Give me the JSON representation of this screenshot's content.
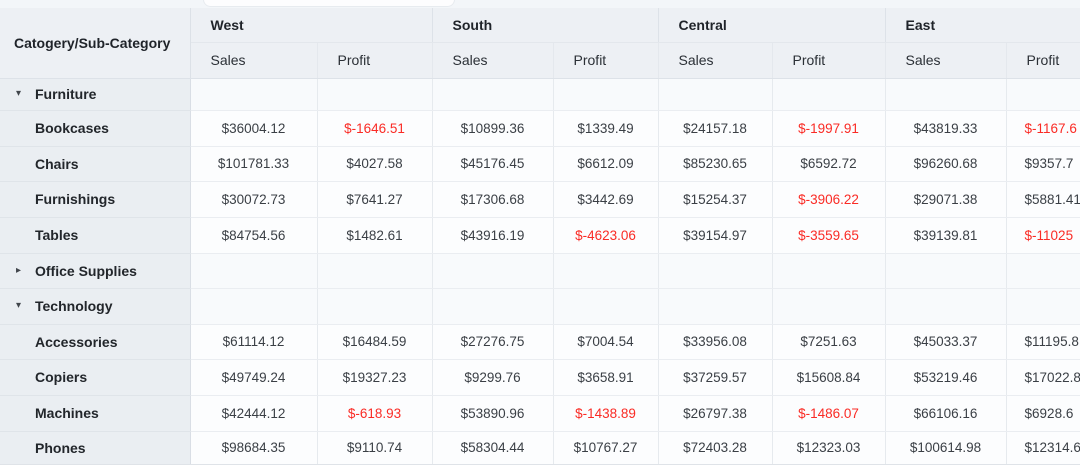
{
  "table": {
    "corner_header": "Catogery/Sub-Category",
    "regions": [
      "West",
      "South",
      "Central",
      "East"
    ],
    "metric_cells": [
      "Sales",
      "Profit",
      "Sales",
      "Profit",
      "Sales",
      "Profit",
      "Sales",
      "Profit"
    ],
    "rows": [
      {
        "kind": "category",
        "icon": "triangle-down",
        "label": "Furniture",
        "cells": [
          "",
          "",
          "",
          "",
          "",
          "",
          "",
          ""
        ]
      },
      {
        "kind": "sub",
        "label": "Bookcases",
        "cells": [
          "$36004.12",
          "$-1646.51",
          "$10899.36",
          "$1339.49",
          "$24157.18",
          "$-1997.91",
          "$43819.33",
          "$-1167.6"
        ]
      },
      {
        "kind": "sub",
        "label": "Chairs",
        "cells": [
          "$101781.33",
          "$4027.58",
          "$45176.45",
          "$6612.09",
          "$85230.65",
          "$6592.72",
          "$96260.68",
          "$9357.7"
        ]
      },
      {
        "kind": "sub",
        "label": "Furnishings",
        "cells": [
          "$30072.73",
          "$7641.27",
          "$17306.68",
          "$3442.69",
          "$15254.37",
          "$-3906.22",
          "$29071.38",
          "$5881.41"
        ]
      },
      {
        "kind": "sub",
        "label": "Tables",
        "cells": [
          "$84754.56",
          "$1482.61",
          "$43916.19",
          "$-4623.06",
          "$39154.97",
          "$-3559.65",
          "$39139.81",
          "$-11025"
        ]
      },
      {
        "kind": "category",
        "icon": "triangle-right",
        "label": "Office Supplies",
        "cells": [
          "",
          "",
          "",
          "",
          "",
          "",
          "",
          ""
        ]
      },
      {
        "kind": "category",
        "icon": "triangle-down",
        "label": "Technology",
        "cells": [
          "",
          "",
          "",
          "",
          "",
          "",
          "",
          ""
        ]
      },
      {
        "kind": "sub",
        "label": "Accessories",
        "cells": [
          "$61114.12",
          "$16484.59",
          "$27276.75",
          "$7004.54",
          "$33956.08",
          "$7251.63",
          "$45033.37",
          "$11195.8"
        ]
      },
      {
        "kind": "sub",
        "label": "Copiers",
        "cells": [
          "$49749.24",
          "$19327.23",
          "$9299.76",
          "$3658.91",
          "$37259.57",
          "$15608.84",
          "$53219.46",
          "$17022.8"
        ]
      },
      {
        "kind": "sub",
        "label": "Machines",
        "cells": [
          "$42444.12",
          "$-618.93",
          "$53890.96",
          "$-1438.89",
          "$26797.38",
          "$-1486.07",
          "$66106.16",
          "$6928.6"
        ]
      },
      {
        "kind": "sub",
        "label": "Phones",
        "cells": [
          "$98684.35",
          "$9110.74",
          "$58304.44",
          "$10767.27",
          "$72403.28",
          "$12323.03",
          "$100614.98",
          "$12314.6"
        ]
      }
    ],
    "colors": {
      "negative_value": "#fa2b25",
      "header_bg": "#edf0f4",
      "row_header_bg": "#eaeef2",
      "cell_bg": "#fcfdfe",
      "border": "#e3e7ec",
      "label_text": "#22262b",
      "value_text": "#3a3f45"
    }
  }
}
